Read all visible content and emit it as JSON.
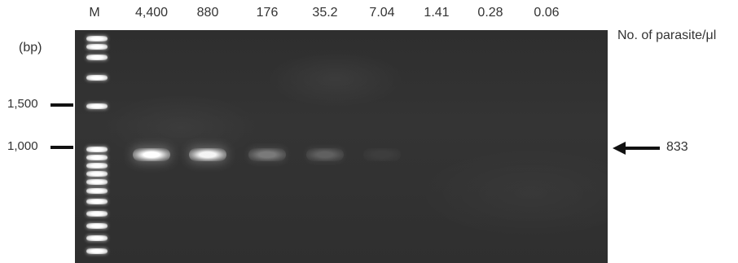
{
  "lanes": [
    {
      "label": "M"
    },
    {
      "label": "4,400",
      "intensity": 1.0
    },
    {
      "label": "880",
      "intensity": 0.95
    },
    {
      "label": "176",
      "intensity": 0.35
    },
    {
      "label": "35.2",
      "intensity": 0.22
    },
    {
      "label": "7.04",
      "intensity": 0.05
    },
    {
      "label": "1.41",
      "intensity": 0.0
    },
    {
      "label": "0.28",
      "intensity": 0.0
    },
    {
      "label": "0.06",
      "intensity": 0.0
    }
  ],
  "units_label": "No. of parasite/μl",
  "size_unit": "(bp)",
  "markers": [
    {
      "label": "1,500"
    },
    {
      "label": "1,000"
    }
  ],
  "product_size": "833",
  "colors": {
    "gel_background": "#303030",
    "band": "#ffffff",
    "arrow": "#111111"
  }
}
